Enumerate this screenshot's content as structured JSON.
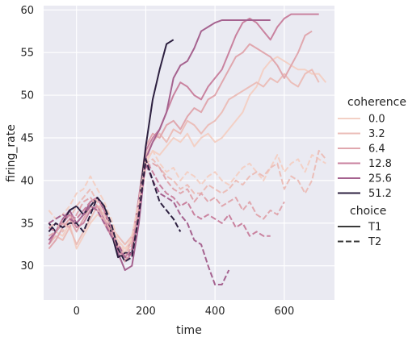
{
  "chart_data": {
    "type": "line",
    "xlabel": "time",
    "ylabel": "firing_rate",
    "xlim": [
      -95,
      745
    ],
    "ylim": [
      26,
      60.5
    ],
    "xticks": [
      0,
      200,
      400,
      600
    ],
    "yticks": [
      30,
      35,
      40,
      45,
      50,
      55,
      60
    ],
    "grid": true,
    "background": "#eaeaf2",
    "legend": {
      "placement": "right",
      "hue_title": "coherence",
      "style_title": "choice",
      "hue_entries": [
        "0.0",
        "3.2",
        "6.4",
        "12.8",
        "25.6",
        "51.2"
      ],
      "style_entries": [
        "T1",
        "T2"
      ]
    },
    "colors": {
      "0.0": "#f3d0c5",
      "3.2": "#ebbeb9",
      "6.4": "#e0a7ae",
      "12.8": "#c9829f",
      "25.6": "#a5628f",
      "51.2": "#2d2040"
    },
    "series": [
      {
        "coherence": "0.0",
        "choice": "T1",
        "x": [
          -80,
          -60,
          -40,
          -20,
          0,
          20,
          40,
          60,
          80,
          100,
          120,
          140,
          160,
          180,
          200,
          220,
          240,
          260,
          280,
          300,
          320,
          340,
          360,
          380,
          400,
          420,
          440,
          460,
          480,
          500,
          520,
          540,
          560,
          580,
          600,
          620,
          640,
          660,
          680,
          700,
          720
        ],
        "y": [
          33.0,
          34.0,
          33.5,
          35.0,
          32.0,
          33.5,
          35.0,
          36.0,
          35.5,
          34.0,
          33.0,
          32.0,
          33.0,
          36.0,
          42.0,
          43.5,
          43.0,
          44.0,
          45.0,
          44.5,
          45.5,
          44.0,
          45.0,
          45.5,
          44.5,
          45.0,
          46.0,
          47.0,
          48.0,
          50.0,
          51.0,
          53.0,
          54.0,
          54.5,
          54.0,
          53.5,
          53.0,
          53.0,
          52.5,
          52.5,
          51.5
        ]
      },
      {
        "coherence": "3.2",
        "choice": "T1",
        "x": [
          -80,
          -60,
          -40,
          -20,
          0,
          20,
          40,
          60,
          80,
          100,
          120,
          140,
          160,
          180,
          200,
          220,
          240,
          260,
          280,
          300,
          320,
          340,
          360,
          380,
          400,
          420,
          440,
          460,
          480,
          500,
          520,
          540,
          560,
          580,
          600,
          620,
          640,
          660,
          680,
          700
        ],
        "y": [
          32.5,
          33.5,
          33.0,
          34.5,
          32.5,
          34.0,
          35.5,
          37.0,
          36.0,
          34.5,
          33.5,
          32.5,
          33.5,
          37.0,
          43.0,
          44.5,
          45.5,
          44.5,
          46.0,
          45.5,
          47.0,
          46.5,
          45.5,
          46.5,
          47.0,
          48.0,
          49.5,
          50.0,
          50.5,
          51.0,
          51.5,
          51.0,
          52.0,
          51.5,
          52.5,
          51.5,
          51.0,
          52.5,
          53.0,
          51.5
        ]
      },
      {
        "coherence": "6.4",
        "choice": "T1",
        "x": [
          -80,
          -60,
          -40,
          -20,
          0,
          20,
          40,
          60,
          80,
          100,
          120,
          140,
          160,
          180,
          200,
          220,
          240,
          260,
          280,
          300,
          320,
          340,
          360,
          380,
          400,
          420,
          440,
          460,
          480,
          500,
          520,
          540,
          560,
          580,
          600,
          620,
          640,
          660,
          680
        ],
        "y": [
          32.0,
          33.0,
          34.5,
          35.5,
          34.0,
          35.5,
          37.0,
          36.5,
          35.0,
          33.5,
          32.5,
          31.5,
          33.0,
          38.0,
          44.0,
          45.5,
          45.0,
          46.5,
          47.0,
          46.0,
          47.5,
          48.5,
          48.0,
          49.5,
          50.0,
          51.5,
          53.0,
          54.5,
          55.0,
          56.0,
          55.5,
          55.0,
          54.5,
          53.5,
          52.0,
          53.5,
          55.0,
          57.0,
          57.5
        ]
      },
      {
        "coherence": "12.8",
        "choice": "T1",
        "x": [
          -80,
          -60,
          -40,
          -20,
          0,
          20,
          40,
          60,
          80,
          100,
          120,
          140,
          160,
          180,
          200,
          220,
          240,
          260,
          280,
          300,
          320,
          340,
          360,
          380,
          400,
          420,
          440,
          460,
          480,
          500,
          520,
          540,
          560,
          580,
          600,
          620,
          640,
          660,
          680,
          700
        ],
        "y": [
          32.5,
          34.0,
          35.0,
          36.0,
          34.5,
          35.0,
          36.5,
          37.0,
          35.5,
          33.5,
          32.0,
          30.5,
          31.5,
          38.0,
          43.5,
          45.0,
          46.0,
          48.0,
          50.0,
          51.5,
          51.0,
          50.0,
          49.5,
          51.0,
          52.0,
          53.0,
          55.0,
          57.0,
          58.5,
          59.0,
          58.5,
          57.5,
          56.5,
          58.0,
          59.0,
          59.5,
          59.5,
          59.5,
          59.5,
          59.5
        ]
      },
      {
        "coherence": "25.6",
        "choice": "T1",
        "x": [
          -80,
          -60,
          -40,
          -20,
          0,
          20,
          40,
          60,
          80,
          100,
          120,
          140,
          160,
          180,
          200,
          220,
          240,
          260,
          280,
          300,
          320,
          340,
          360,
          380,
          400,
          420,
          440,
          460,
          480,
          500,
          520,
          540,
          560
        ],
        "y": [
          33.0,
          34.0,
          35.5,
          36.5,
          35.0,
          36.0,
          37.5,
          38.0,
          36.5,
          34.0,
          31.5,
          29.5,
          30.0,
          35.0,
          42.5,
          44.5,
          46.0,
          48.0,
          52.0,
          53.5,
          54.0,
          55.5,
          57.5,
          58.0,
          58.5,
          58.8,
          58.8,
          58.8,
          58.8,
          58.8,
          58.8,
          58.8,
          58.8
        ]
      },
      {
        "coherence": "51.2",
        "choice": "T1",
        "x": [
          -80,
          -60,
          -40,
          -20,
          0,
          20,
          40,
          60,
          80,
          100,
          120,
          140,
          160,
          180,
          200,
          220,
          240,
          260,
          280
        ],
        "y": [
          35.0,
          34.0,
          35.0,
          36.5,
          37.0,
          36.0,
          37.0,
          38.0,
          37.0,
          34.0,
          31.0,
          31.5,
          31.5,
          37.0,
          44.0,
          49.5,
          53.0,
          56.0,
          56.5
        ]
      },
      {
        "coherence": "0.0",
        "choice": "T2",
        "x": [
          -80,
          -60,
          -40,
          -20,
          0,
          20,
          40,
          60,
          80,
          100,
          120,
          140,
          160,
          180,
          200,
          220,
          240,
          260,
          280,
          300,
          320,
          340,
          360,
          380,
          400,
          420,
          440,
          460,
          480,
          500,
          520,
          540,
          560,
          580,
          600,
          620,
          640,
          660,
          680,
          700,
          720
        ],
        "y": [
          36.5,
          35.5,
          36.0,
          37.0,
          38.5,
          39.0,
          40.5,
          39.0,
          37.5,
          35.5,
          33.0,
          31.5,
          33.5,
          37.5,
          42.5,
          43.5,
          42.0,
          41.0,
          41.5,
          40.0,
          41.0,
          40.5,
          39.5,
          40.5,
          41.0,
          40.0,
          39.5,
          40.5,
          41.5,
          42.0,
          41.0,
          40.0,
          41.5,
          43.0,
          41.0,
          42.0,
          42.5,
          41.0,
          43.0,
          42.5,
          42.0
        ]
      },
      {
        "coherence": "3.2",
        "choice": "T2",
        "x": [
          -80,
          -60,
          -40,
          -20,
          0,
          20,
          40,
          60,
          80,
          100,
          120,
          140,
          160,
          180,
          200,
          220,
          240,
          260,
          280,
          300,
          320,
          340,
          360,
          380,
          400,
          420,
          440,
          460,
          480,
          500,
          520,
          540,
          560,
          580,
          600,
          620,
          640,
          660,
          680,
          700,
          720
        ],
        "y": [
          34.5,
          35.0,
          34.0,
          35.5,
          37.0,
          38.0,
          39.0,
          37.5,
          36.0,
          34.5,
          32.5,
          31.0,
          33.0,
          37.0,
          42.0,
          42.5,
          41.5,
          40.5,
          40.0,
          39.0,
          39.5,
          38.5,
          38.5,
          39.5,
          39.0,
          38.5,
          39.0,
          40.0,
          39.5,
          40.5,
          41.0,
          40.5,
          41.5,
          42.0,
          39.0,
          40.5,
          40.0,
          38.5,
          40.0,
          43.5,
          42.5
        ]
      },
      {
        "coherence": "6.4",
        "choice": "T2",
        "x": [
          -80,
          -60,
          -40,
          -20,
          0,
          20,
          40,
          60,
          80,
          100,
          120,
          140,
          160,
          180,
          200,
          220,
          240,
          260,
          280,
          300,
          320,
          340,
          360,
          380,
          400,
          420,
          440,
          460,
          480,
          500,
          520,
          540,
          560,
          580,
          600
        ],
        "y": [
          33.5,
          34.0,
          35.0,
          34.5,
          36.0,
          37.5,
          38.0,
          37.0,
          35.5,
          34.0,
          32.0,
          30.5,
          32.5,
          36.5,
          41.5,
          42.0,
          41.5,
          40.0,
          39.0,
          38.5,
          39.0,
          37.5,
          38.5,
          37.5,
          38.0,
          37.0,
          37.5,
          38.0,
          36.5,
          37.5,
          36.0,
          35.5,
          36.5,
          36.0,
          37.5
        ]
      },
      {
        "coherence": "12.8",
        "choice": "T2",
        "x": [
          -80,
          -60,
          -40,
          -20,
          0,
          20,
          40,
          60,
          80,
          100,
          120,
          140,
          160,
          180,
          200,
          220,
          240,
          260,
          280,
          300,
          320,
          340,
          360,
          380,
          400,
          420,
          440,
          460,
          480,
          500,
          520,
          540,
          560
        ],
        "y": [
          34.5,
          34.0,
          35.5,
          36.0,
          35.5,
          36.5,
          37.5,
          38.0,
          36.5,
          34.5,
          32.0,
          31.0,
          32.0,
          36.5,
          42.5,
          41.0,
          39.5,
          38.5,
          38.0,
          37.0,
          37.5,
          36.0,
          35.5,
          36.0,
          35.5,
          35.0,
          36.0,
          34.5,
          35.0,
          33.5,
          34.0,
          33.5,
          33.5
        ]
      },
      {
        "coherence": "25.6",
        "choice": "T2",
        "x": [
          -80,
          -60,
          -40,
          -20,
          0,
          20,
          40,
          60,
          80,
          100,
          120,
          140,
          160,
          180,
          200,
          220,
          240,
          260,
          280,
          300,
          320,
          340,
          360,
          380,
          400,
          420,
          440
        ],
        "y": [
          35.0,
          35.5,
          36.0,
          35.5,
          35.0,
          36.0,
          37.0,
          36.5,
          35.0,
          33.5,
          32.5,
          31.0,
          31.5,
          35.5,
          42.0,
          40.0,
          38.5,
          38.0,
          37.5,
          36.0,
          35.0,
          33.0,
          32.5,
          30.0,
          27.8,
          27.8,
          29.5
        ]
      },
      {
        "coherence": "51.2",
        "choice": "T2",
        "x": [
          -80,
          -60,
          -40,
          -20,
          0,
          20,
          40,
          60,
          80,
          100,
          120,
          140,
          160,
          180,
          200,
          220,
          240,
          260,
          280,
          300
        ],
        "y": [
          34.0,
          35.0,
          34.5,
          35.0,
          35.0,
          34.0,
          36.0,
          38.0,
          37.0,
          35.0,
          32.0,
          30.5,
          31.0,
          36.0,
          42.5,
          40.0,
          37.5,
          36.5,
          35.5,
          34.0
        ]
      }
    ]
  }
}
